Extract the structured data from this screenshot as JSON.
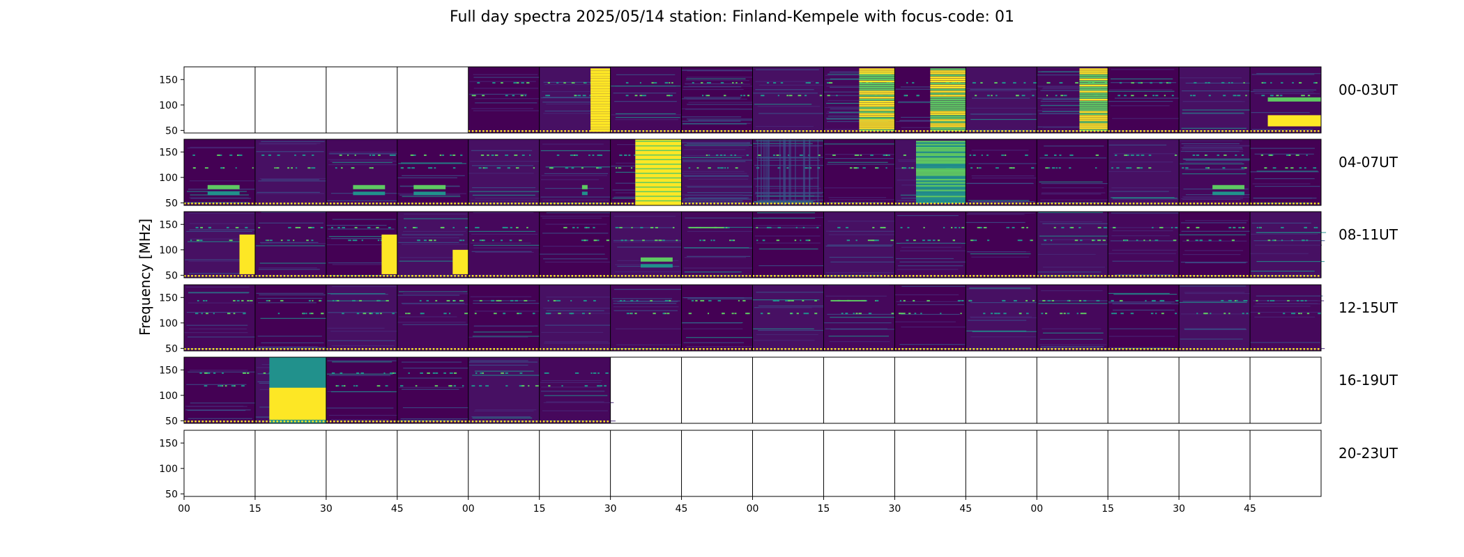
{
  "title": "Full day spectra 2025/05/14 station: Finland-Kempele with focus-code: 01",
  "chart_data": {
    "type": "heatmap",
    "title": "Full day spectra 2025/05/14 station: Finland-Kempele with focus-code: 01",
    "ylabel": "Frequency [MHz]",
    "xlabel": "",
    "ylim": [
      45,
      175
    ],
    "y_ticks": [
      50,
      100,
      150
    ],
    "x_ticks": [
      "00",
      "15",
      "30",
      "45",
      "00",
      "15",
      "30",
      "45",
      "00",
      "15",
      "30",
      "45",
      "00",
      "15",
      "30",
      "45"
    ],
    "colormap": [
      "#440154",
      "#3b528b",
      "#21918c",
      "#5ec962",
      "#fde725"
    ],
    "rows": [
      {
        "label": "00-03UT",
        "panels": [
          "empty",
          "empty",
          "empty",
          "empty",
          "quiet",
          "burst-narrow-yellow",
          "quiet",
          "banded",
          "quiet",
          "banded-green",
          "burst-yellow-green",
          "quiet-lines",
          "banded-yellow",
          "quiet-dark",
          "quiet",
          "burst-yellow-low"
        ]
      },
      {
        "label": "04-07UT",
        "panels": [
          "activity-low",
          "quiet",
          "activity-low",
          "activity-low",
          "quiet",
          "activity-narrow",
          "burst-yellow-full",
          "banded",
          "banded-vertical",
          "quiet",
          "burst-green-full",
          "quiet-dark",
          "quiet-dark",
          "quiet",
          "banded-right",
          "quiet"
        ]
      },
      {
        "label": "08-11UT",
        "panels": [
          "burst-right-yellow",
          "quiet",
          "burst-right-yellow",
          "burst-right-low",
          "quiet",
          "quiet",
          "activity-low",
          "quiet-line",
          "quiet",
          "quiet",
          "quiet",
          "quiet",
          "quiet",
          "quiet",
          "quiet",
          "quiet"
        ]
      },
      {
        "label": "12-15UT",
        "panels": [
          "quiet",
          "quiet",
          "quiet",
          "quiet",
          "quiet",
          "quiet",
          "quiet",
          "quiet",
          "quiet",
          "quiet-line",
          "quiet",
          "quiet",
          "quiet",
          "quiet",
          "quiet",
          "quiet"
        ]
      },
      {
        "label": "16-19UT",
        "panels": [
          "quiet",
          "burst-green-yellow",
          "quiet-dark",
          "quiet",
          "quiet",
          "quiet",
          "empty",
          "empty",
          "empty",
          "empty",
          "empty",
          "empty",
          "empty",
          "empty",
          "empty",
          "empty"
        ]
      },
      {
        "label": "20-23UT",
        "panels": [
          "empty",
          "empty",
          "empty",
          "empty",
          "empty",
          "empty",
          "empty",
          "empty",
          "empty",
          "empty",
          "empty",
          "empty",
          "empty",
          "empty",
          "empty",
          "empty"
        ]
      }
    ]
  }
}
